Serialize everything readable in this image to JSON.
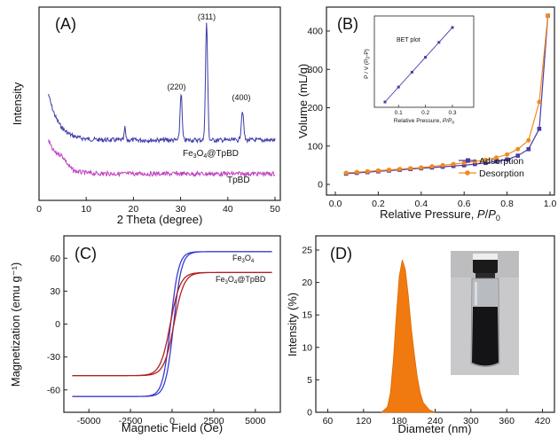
{
  "chart_data": [
    {
      "panel": "(A)",
      "type": "line",
      "xlabel": "2 Theta (degree)",
      "ylabel": "Intensity",
      "xlim": [
        0,
        50
      ],
      "xticks": [
        "0",
        "10",
        "20",
        "30",
        "40",
        "50"
      ],
      "series": [
        {
          "name": "Fe3O4@TpBD",
          "color": "#3b3ba8"
        },
        {
          "name": "TpBD",
          "color": "#c040c0"
        }
      ],
      "peaks": [
        {
          "label": "(220)",
          "x": 30.1
        },
        {
          "label": "(311)",
          "x": 35.5
        },
        {
          "label": "(400)",
          "x": 43.1
        }
      ]
    },
    {
      "panel": "(B)",
      "type": "line",
      "xlabel": "Relative Pressure, P/P0",
      "ylabel": "Volume (mL/g)",
      "xlim": [
        0,
        1.0
      ],
      "ylim": [
        0,
        450
      ],
      "xticks": [
        "0.0",
        "0.2",
        "0.4",
        "0.6",
        "0.8",
        "1.0"
      ],
      "yticks": [
        "0",
        "100",
        "200",
        "300",
        "400"
      ],
      "legend": "bottom-right",
      "series": [
        {
          "name": "Adsorption",
          "color": "#4a3aa8",
          "x": [
            0.05,
            0.1,
            0.15,
            0.2,
            0.25,
            0.3,
            0.35,
            0.4,
            0.45,
            0.5,
            0.55,
            0.6,
            0.65,
            0.7,
            0.75,
            0.8,
            0.85,
            0.9,
            0.95,
            0.99
          ],
          "y": [
            28,
            30,
            32,
            34,
            36,
            38,
            40,
            42,
            44,
            46,
            48,
            50,
            53,
            56,
            60,
            65,
            75,
            92,
            145,
            440
          ]
        },
        {
          "name": "Desorption",
          "color": "#f08a20",
          "x": [
            0.05,
            0.1,
            0.15,
            0.2,
            0.25,
            0.3,
            0.35,
            0.4,
            0.45,
            0.5,
            0.55,
            0.6,
            0.65,
            0.7,
            0.75,
            0.8,
            0.85,
            0.9,
            0.95,
            0.99
          ],
          "y": [
            30,
            32,
            34,
            36,
            38,
            40,
            42,
            44,
            47,
            50,
            53,
            56,
            60,
            64,
            70,
            78,
            92,
            115,
            215,
            440
          ]
        }
      ],
      "inset": {
        "title": "BET plot",
        "xlabel": "Relative Pressure, P/P0",
        "ylabel": "P / V (P0-P)",
        "xticks": [
          "0.1",
          "0.2",
          "0.3"
        ],
        "x": [
          0.05,
          0.1,
          0.15,
          0.2,
          0.25,
          0.3
        ],
        "y": [
          0.08,
          0.23,
          0.38,
          0.53,
          0.68,
          0.83
        ]
      }
    },
    {
      "panel": "(C)",
      "type": "line",
      "xlabel": "Magnetic Field (Oe)",
      "ylabel": "Magnetization (emu g⁻¹)",
      "xlim": [
        -6500,
        6500
      ],
      "ylim": [
        -80,
        80
      ],
      "xticks": [
        "-5000",
        "-2500",
        "0",
        "2500",
        "5000"
      ],
      "yticks": [
        "-60",
        "-30",
        "0",
        "30",
        "60"
      ],
      "series": [
        {
          "name": "Fe3O4",
          "color": "#3b3bd0",
          "ms": 66
        },
        {
          "name": "Fe3O4@TpBD",
          "color": "#b02020",
          "ms": 47
        }
      ]
    },
    {
      "panel": "(D)",
      "type": "area",
      "xlabel": "Diameter (nm)",
      "ylabel": "Intensity (%)",
      "xlim": [
        40,
        440
      ],
      "ylim": [
        0,
        25
      ],
      "xticks": [
        "60",
        "120",
        "180",
        "240",
        "300",
        "360",
        "420"
      ],
      "yticks": [
        "0",
        "5",
        "10",
        "15",
        "20",
        "25"
      ],
      "color": "#f07a10",
      "x": [
        150,
        160,
        165,
        170,
        175,
        180,
        185,
        190,
        195,
        200,
        205,
        210,
        215,
        220,
        230,
        240
      ],
      "y": [
        0,
        0.8,
        3,
        8,
        15,
        21,
        23.5,
        22,
        18,
        13,
        9,
        5.5,
        3,
        1.5,
        0.4,
        0
      ]
    }
  ]
}
